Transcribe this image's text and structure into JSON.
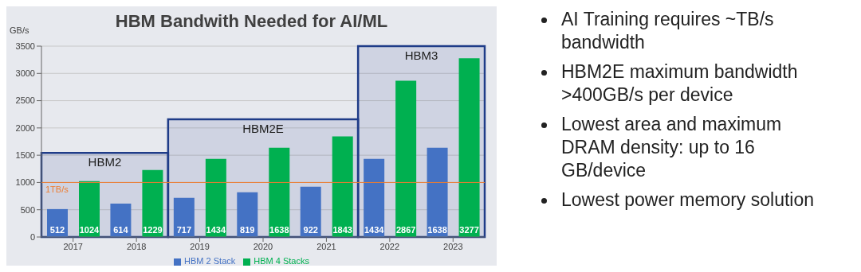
{
  "chart_data": {
    "type": "bar",
    "title": "HBM Bandwith Needed for AI/ML",
    "ylabel": "GB/s",
    "categories": [
      "2017",
      "2018",
      "2019",
      "2020",
      "2021",
      "2022",
      "2023"
    ],
    "series": [
      {
        "name": "HBM 2 Stack",
        "color": "#4472c4",
        "values": [
          512,
          614,
          717,
          819,
          922,
          1434,
          1638
        ]
      },
      {
        "name": "HBM 4 Stacks",
        "color": "#00b050",
        "values": [
          1024,
          1229,
          1434,
          1638,
          1843,
          2867,
          3277
        ]
      }
    ],
    "ylim": [
      0,
      3500
    ],
    "yticks": [
      0,
      500,
      1000,
      1500,
      2000,
      2500,
      3000,
      3500
    ],
    "grid": "y",
    "legend": "bottom",
    "data_labels": true,
    "ref_lines": [
      {
        "axis": "y",
        "value": 1000,
        "label": "1TB/s",
        "color": "#ed7d31"
      }
    ],
    "bands": [
      {
        "axis": "x",
        "from": "2017",
        "to": "2018",
        "label": "HBM2",
        "color": "#1f3c88"
      },
      {
        "axis": "x",
        "from": "2019",
        "to": "2021",
        "label": "HBM2E",
        "color": "#1f3c88"
      },
      {
        "axis": "x",
        "from": "2022",
        "to": "2023",
        "label": "HBM3",
        "color": "#1f3c88"
      }
    ],
    "annotations": [
      "AI Training requires ~TB/s bandwidth",
      "HBM2E maximum bandwidth >400GB/s per device",
      "Lowest area and maximum DRAM density: up to 16 GB/device",
      "Lowest power memory solution"
    ]
  }
}
